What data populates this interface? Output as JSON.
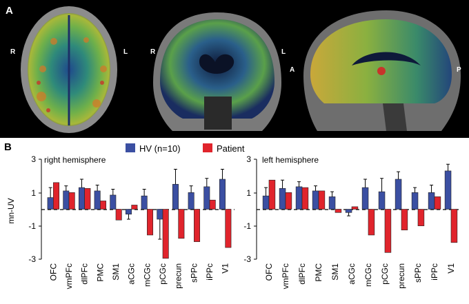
{
  "panel_a": {
    "label": "A",
    "views": [
      {
        "name": "axial",
        "orient_left": "R",
        "orient_right": "L"
      },
      {
        "name": "coronal",
        "orient_left": "R",
        "orient_right": "L"
      },
      {
        "name": "sagittal",
        "orient_left": "A",
        "orient_right": "P"
      }
    ]
  },
  "panel_b": {
    "label": "B",
    "legend": {
      "hv": "HV (n=10)",
      "patient": "Patient"
    },
    "ylabel": "mn-UV",
    "colors": {
      "hv": "#3b4fa2",
      "patient": "#e0242c",
      "edge": "#222222"
    }
  },
  "chart_data": [
    {
      "type": "bar",
      "title": "right hemisphere",
      "ylabel": "mn-UV",
      "ylim": [
        -3,
        3
      ],
      "yticks": [
        "3",
        "1",
        "-1",
        "-3"
      ],
      "categories": [
        "OFC",
        "vmPFc",
        "dlPFc",
        "PMC",
        "SM1",
        "aCGc",
        "mCGc",
        "pCGc",
        "precun",
        "sPPc",
        "iPPc",
        "V1"
      ],
      "series": [
        {
          "name": "HV (n=10)",
          "values": [
            0.7,
            1.1,
            1.3,
            1.1,
            0.85,
            -0.3,
            0.8,
            -0.6,
            1.5,
            1.0,
            1.35,
            1.8
          ],
          "errors": [
            0.6,
            0.3,
            0.5,
            0.35,
            0.35,
            0.3,
            0.4,
            1.2,
            0.9,
            0.4,
            0.5,
            0.6
          ]
        },
        {
          "name": "Patient",
          "values": [
            1.6,
            1.0,
            1.25,
            0.5,
            -0.65,
            0.25,
            -1.55,
            -2.95,
            -1.75,
            -1.95,
            0.55,
            -2.3
          ],
          "errors": []
        }
      ]
    },
    {
      "type": "bar",
      "title": "left hemisphere",
      "ylabel": "mn-UV",
      "ylim": [
        -3,
        3
      ],
      "yticks": [
        "3",
        "1",
        "-1",
        "-3"
      ],
      "categories": [
        "OFC",
        "vmPFc",
        "dlPFc",
        "PMC",
        "SM1",
        "aCGc",
        "mCGc",
        "pCGc",
        "precun",
        "sPPc",
        "iPPc",
        "V1"
      ],
      "series": [
        {
          "name": "HV (n=10)",
          "values": [
            0.8,
            1.25,
            1.35,
            1.1,
            0.75,
            -0.2,
            1.3,
            1.05,
            1.8,
            1.0,
            1.0,
            2.3
          ],
          "errors": [
            0.5,
            0.5,
            0.3,
            0.3,
            0.3,
            0.2,
            0.5,
            0.8,
            0.45,
            0.3,
            0.45,
            0.4
          ]
        },
        {
          "name": "Patient",
          "values": [
            1.75,
            1.0,
            1.3,
            1.1,
            -0.2,
            0.15,
            -1.55,
            -2.6,
            -1.25,
            -1.0,
            0.75,
            -2.0
          ],
          "errors": []
        }
      ]
    }
  ]
}
